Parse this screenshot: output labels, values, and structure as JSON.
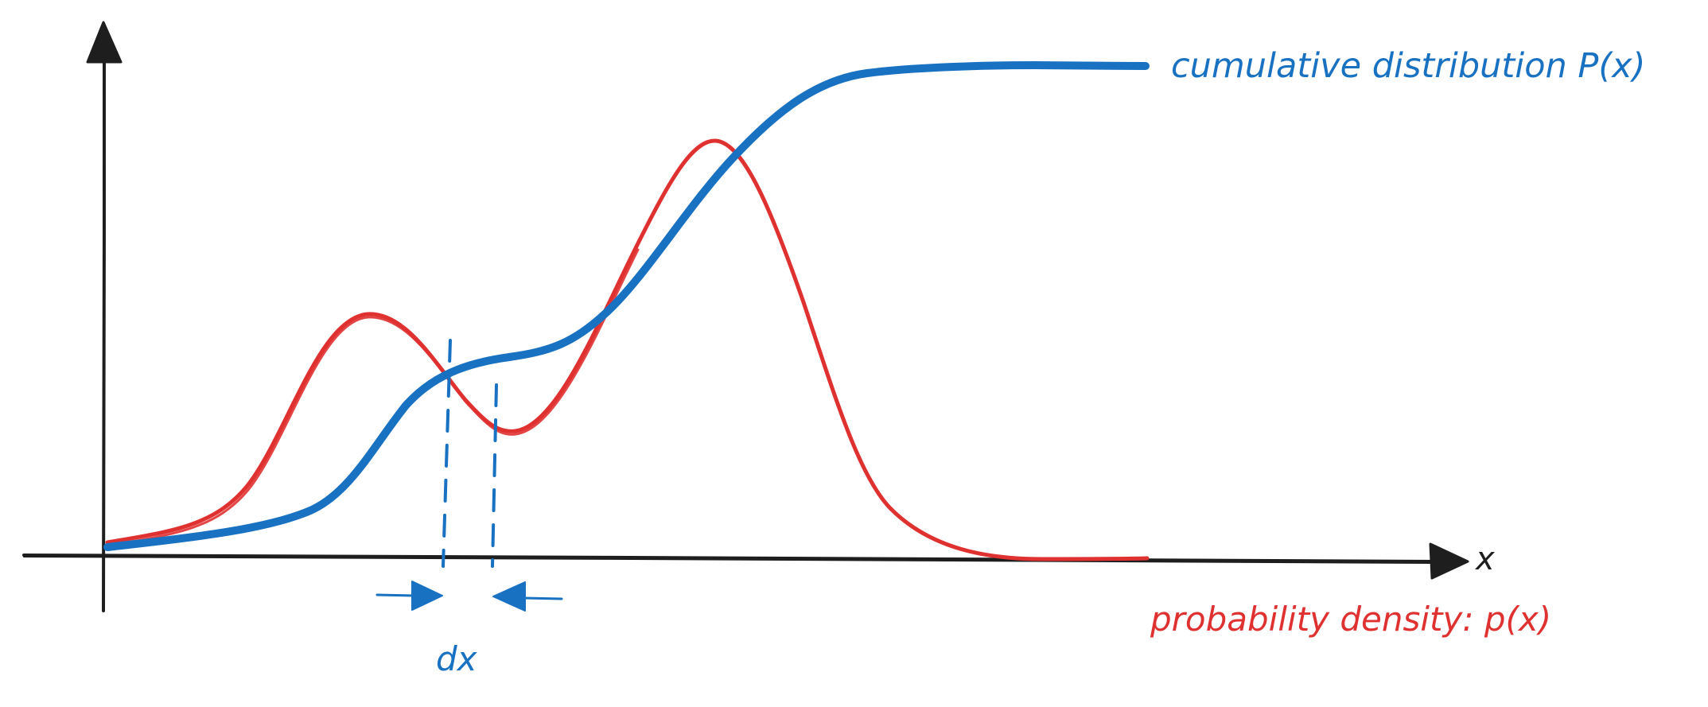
{
  "labels": {
    "x_axis": "x",
    "cdf": "cumulative distribution P(x)",
    "pdf": "probability density: p(x)",
    "dx": "dx"
  },
  "colors": {
    "axes": "#1e1e1e",
    "cdf": "#1971c2",
    "pdf": "#e03131",
    "background": "#ffffff"
  }
}
